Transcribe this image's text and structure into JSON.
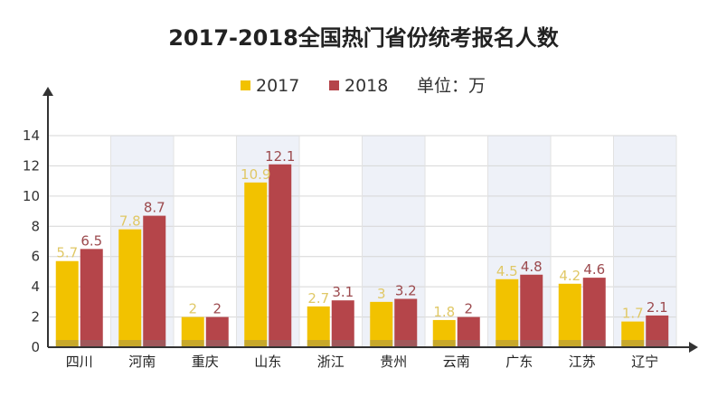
{
  "chart_data": {
    "type": "bar",
    "title": "2017-2018全国热门省份统考报名人数",
    "unit_label": "单位：万",
    "categories": [
      "四川",
      "河南",
      "重庆",
      "山东",
      "浙江",
      "贵州",
      "云南",
      "广东",
      "江苏",
      "辽宁"
    ],
    "series": [
      {
        "name": "2017",
        "color": "#F2C200",
        "labels": [
          "5.7",
          "7.8",
          "2",
          "10.9",
          "2.7",
          "3",
          "1.8",
          "4.5",
          "4.2",
          "1.7"
        ],
        "values": [
          5.7,
          7.8,
          2,
          10.9,
          2.7,
          3,
          1.8,
          4.5,
          4.2,
          1.7
        ]
      },
      {
        "name": "2018",
        "color": "#B5454A",
        "labels": [
          "6.5",
          "8.7",
          "2",
          "12.1",
          "3.1",
          "3.2",
          "2",
          "4.8",
          "4.6",
          "2.1"
        ],
        "values": [
          6.5,
          8.7,
          2,
          12.1,
          3.1,
          3.2,
          2,
          4.8,
          4.6,
          2.1
        ]
      }
    ],
    "yticks": [
      0,
      2,
      4,
      6,
      8,
      10,
      12,
      14
    ],
    "ylim": [
      0,
      14
    ],
    "grid": true,
    "legend_position": "top"
  }
}
